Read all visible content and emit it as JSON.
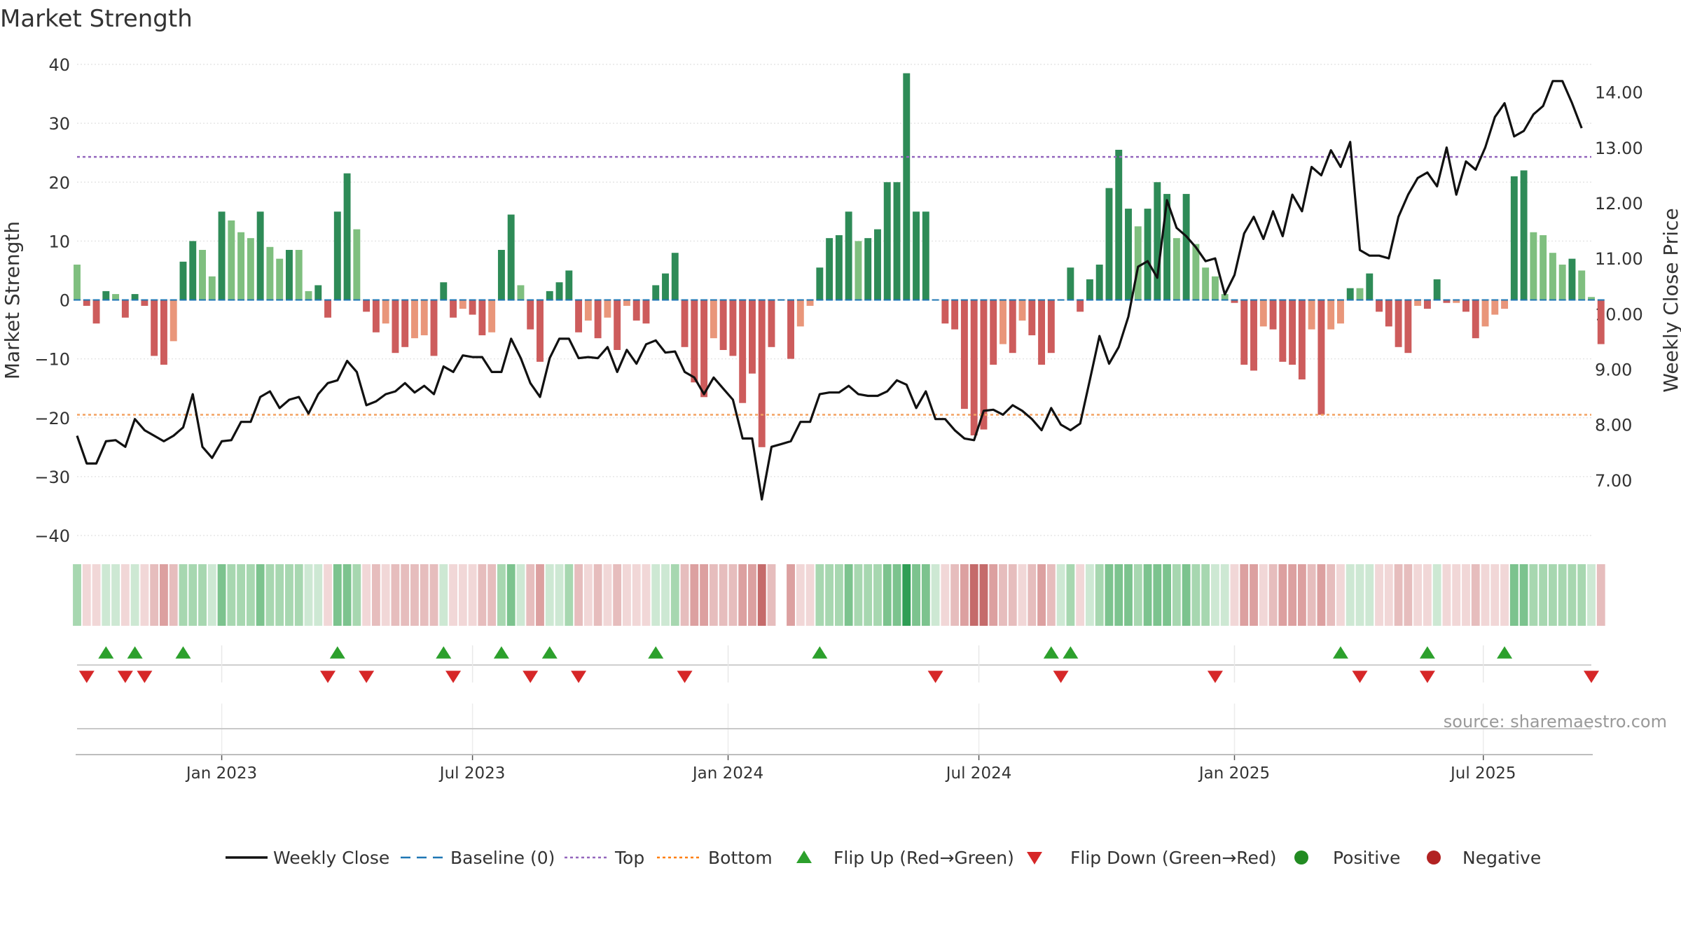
{
  "chart_data": {
    "type": "bar",
    "title": "Market Strength",
    "ylabel": "Market Strength",
    "y2label": "Weekly Close Price",
    "ylim": [
      -40,
      40
    ],
    "y2lim": [
      6.0,
      14.5
    ],
    "yticks": [
      -40,
      -30,
      -20,
      -10,
      0,
      10,
      20,
      30,
      40
    ],
    "y2ticks": [
      7.0,
      8.0,
      9.0,
      10.0,
      11.0,
      12.0,
      13.0,
      14.0
    ],
    "x_range": [
      0,
      157
    ],
    "x_ticks": [
      {
        "label": "Jan 2023",
        "idx": 15
      },
      {
        "label": "Jul 2023",
        "idx": 41
      },
      {
        "label": "Jan 2024",
        "idx": 67.5
      },
      {
        "label": "Jul 2024",
        "idx": 93.5
      },
      {
        "label": "Jan 2025",
        "idx": 120
      },
      {
        "label": "Jul 2025",
        "idx": 145.8
      }
    ],
    "top_line": 24.3,
    "bottom_line": -19.5,
    "strength": [
      6,
      -1,
      -4,
      1.5,
      1,
      -3,
      1,
      -1,
      -9.5,
      -11,
      -7,
      6.5,
      10,
      8.5,
      4,
      15,
      13.5,
      11.5,
      10.5,
      15,
      9,
      7,
      8.5,
      8.5,
      1.5,
      2.5,
      -3,
      15,
      21.5,
      12,
      -2,
      -5.5,
      -4,
      -9,
      -8,
      -6.5,
      -6,
      -9.5,
      3,
      -3,
      -1.5,
      -2.5,
      -6,
      -5.5,
      8.5,
      14.5,
      2.5,
      -5,
      -10.5,
      1.5,
      3,
      5,
      -5.5,
      -3.5,
      -6.5,
      -3,
      -8.5,
      -1,
      -3.5,
      -4,
      2.5,
      4.5,
      8,
      -8,
      -14,
      -16.5,
      -6.5,
      -8.5,
      -9.5,
      -17.5,
      -12.5,
      -25,
      -8,
      0,
      -10,
      -4.5,
      -1,
      5.5,
      10.5,
      11,
      15,
      10,
      10.5,
      12,
      20,
      20,
      38.5,
      15,
      15,
      0,
      -4,
      -5,
      -18.5,
      -23,
      -22,
      -11,
      -7.5,
      -9,
      -3.5,
      -6,
      -11,
      -9,
      0,
      5.5,
      -2,
      3.5,
      6,
      19,
      25.5,
      15.5,
      12.5,
      15.5,
      20,
      18,
      10.5,
      18,
      9.5,
      5.5,
      4,
      1,
      -0.5,
      -11,
      -12,
      -4.5,
      -5,
      -10.5,
      -11,
      -13.5,
      -5,
      -19.5,
      -5,
      -4,
      2,
      2,
      4.5,
      -2,
      -4.5,
      -8,
      -9,
      -1,
      -1.5,
      3.5,
      -0.5,
      -0.5,
      -2,
      -6.5,
      -4.5,
      -2.5,
      -1.5,
      21,
      22,
      11.5,
      11,
      8,
      6,
      7,
      5,
      0.5,
      -7.5
    ],
    "close": [
      7.8,
      7.3,
      7.3,
      7.7,
      7.72,
      7.6,
      8.1,
      7.9,
      7.8,
      7.7,
      7.8,
      7.95,
      8.55,
      7.6,
      7.4,
      7.7,
      7.72,
      8.05,
      8.05,
      8.5,
      8.6,
      8.3,
      8.45,
      8.5,
      8.2,
      8.55,
      8.75,
      8.8,
      9.15,
      8.95,
      8.35,
      8.42,
      8.55,
      8.6,
      8.75,
      8.58,
      8.7,
      8.55,
      9.05,
      8.95,
      9.25,
      9.22,
      9.22,
      8.95,
      8.95,
      9.55,
      9.2,
      8.75,
      8.5,
      9.2,
      9.55,
      9.55,
      9.2,
      9.22,
      9.2,
      9.4,
      8.95,
      9.35,
      9.1,
      9.45,
      9.52,
      9.3,
      9.32,
      8.95,
      8.85,
      8.55,
      8.85,
      8.65,
      8.45,
      7.75,
      7.75,
      6.65,
      7.6,
      7.65,
      7.7,
      8.05,
      8.05,
      8.55,
      8.58,
      8.58,
      8.7,
      8.55,
      8.52,
      8.52,
      8.6,
      8.8,
      8.72,
      8.3,
      8.6,
      8.1,
      8.1,
      7.9,
      7.75,
      7.72,
      8.25,
      8.27,
      8.18,
      8.35,
      8.25,
      8.1,
      7.9,
      8.3,
      8.0,
      7.9,
      8.02,
      8.8,
      9.6,
      9.1,
      9.4,
      9.95,
      10.85,
      10.95,
      10.65,
      12.05,
      11.55,
      11.4,
      11.2,
      10.95,
      11.0,
      10.35,
      10.7,
      11.45,
      11.75,
      11.35,
      11.85,
      11.4,
      12.15,
      11.85,
      12.65,
      12.5,
      12.95,
      12.65,
      13.1,
      11.15,
      11.05,
      11.05,
      11.0,
      11.75,
      12.15,
      12.45,
      12.55,
      12.3,
      13.0,
      12.15,
      12.75,
      12.6,
      13.0,
      13.55,
      13.8,
      13.2,
      13.3,
      13.6,
      13.75,
      14.2,
      14.2,
      13.8,
      13.35
    ],
    "regime_strip_gap_idx": 73,
    "flip_up_idx": [
      3,
      6,
      11,
      27,
      38,
      44,
      49,
      60,
      77,
      101,
      103,
      131,
      140,
      148
    ],
    "flip_down_idx": [
      1,
      5,
      7,
      26,
      30,
      39,
      47,
      52,
      63,
      89,
      102,
      118,
      133,
      140,
      157
    ],
    "legend": [
      {
        "label": "Weekly Close",
        "kind": "solid-line",
        "color": "#111111"
      },
      {
        "label": "Baseline (0)",
        "kind": "dashed-line",
        "color": "#1f77b4"
      },
      {
        "label": "Top",
        "kind": "dotted-line",
        "color": "#9467bd"
      },
      {
        "label": "Bottom",
        "kind": "dotted-line",
        "color": "#ff7f0e"
      },
      {
        "label": "Flip Up (Red→Green)",
        "kind": "triangle-up",
        "color": "#2ca02c"
      },
      {
        "label": "Flip Down (Green→Red)",
        "kind": "triangle-down",
        "color": "#d62728"
      },
      {
        "label": "Positive",
        "kind": "circle",
        "color": "#228b22"
      },
      {
        "label": "Negative",
        "kind": "circle",
        "color": "#b22222"
      }
    ],
    "source": "source: sharemaestro.com"
  }
}
